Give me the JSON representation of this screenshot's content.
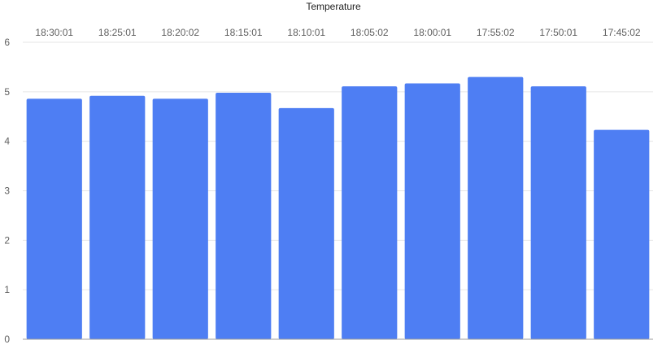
{
  "chart_data": {
    "type": "bar",
    "title": "Temperature",
    "xlabel": "",
    "ylabel": "",
    "categories": [
      "18:30:01",
      "18:25:01",
      "18:20:02",
      "18:15:01",
      "18:10:01",
      "18:05:02",
      "18:00:01",
      "17:55:02",
      "17:50:01",
      "17:45:02"
    ],
    "series": [
      {
        "color": "#4e7ef3",
        "values": [
          4.86,
          4.92,
          4.86,
          4.98,
          4.67,
          5.11,
          5.17,
          5.3,
          5.11,
          4.23
        ]
      }
    ],
    "ylim": [
      0,
      6
    ],
    "yticks": [
      0,
      1,
      2,
      3,
      4,
      5,
      6
    ],
    "category_axis_position": "top",
    "grid": true,
    "grid_color": "#e6e6e6",
    "axis_color": "#9e9e9e",
    "label_color": "#5f5f5f",
    "title_color": "#222222",
    "legend": "none"
  }
}
